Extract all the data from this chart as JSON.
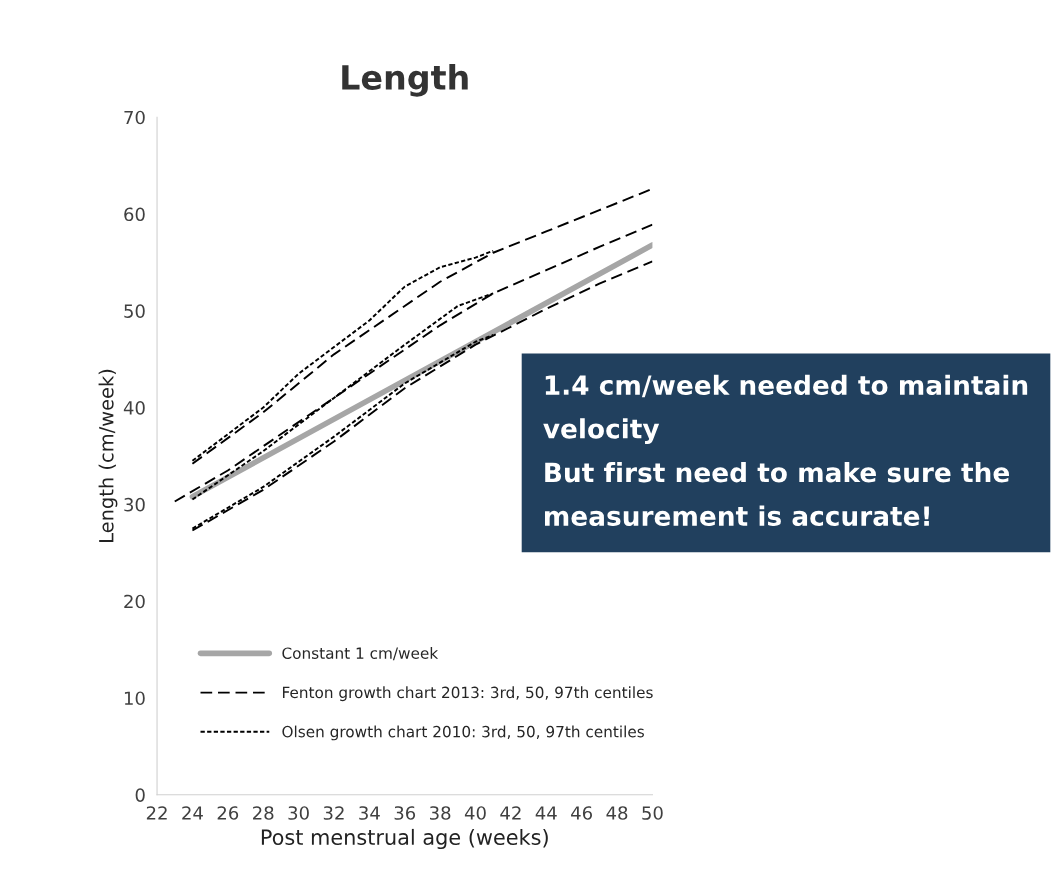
{
  "chart_data": {
    "type": "line",
    "title": "Length",
    "xlabel": "Post menstrual age (weeks)",
    "ylabel": "Length (cm/week)",
    "xlim": [
      22,
      50
    ],
    "xticks": [
      22,
      24,
      26,
      28,
      30,
      32,
      34,
      36,
      38,
      40,
      42,
      44,
      46,
      48,
      50
    ],
    "ylim": [
      0,
      70
    ],
    "yticks": [
      0,
      10,
      20,
      30,
      40,
      50,
      60,
      70
    ],
    "grid": false,
    "legend": "bottom left",
    "series": [
      {
        "name": "Constant 1 cm/week",
        "color": "#a6a6a6",
        "line_style": "solid",
        "x": [
          24,
          50
        ],
        "values": [
          30.8,
          56.8
        ]
      },
      {
        "name": "Fenton growth chart 2013: 3rd, 50, 97th centiles",
        "color": "#000000",
        "line_style": "dashed",
        "x": [
          24,
          28,
          32,
          36,
          38,
          41,
          44,
          47,
          50
        ],
        "values": [
          34.2,
          39.5,
          45.5,
          50.5,
          53,
          56,
          58.2,
          60.4,
          62.6
        ]
      },
      {
        "color": "#000000",
        "line_style": "dashed",
        "x": [
          23,
          26,
          30,
          34,
          38,
          41,
          44,
          47,
          50
        ],
        "values": [
          30.3,
          33.5,
          38.5,
          43.5,
          48.5,
          51.8,
          54.2,
          56.6,
          58.9
        ]
      },
      {
        "color": "#000000",
        "line_style": "dashed",
        "x": [
          24,
          28,
          32,
          36,
          40,
          44,
          47,
          50
        ],
        "values": [
          27.3,
          31.5,
          36.5,
          42,
          46.5,
          50.2,
          52.8,
          55.1
        ]
      },
      {
        "name": "Olsen growth chart 2010: 3rd, 50, 97th centiles",
        "color": "#000000",
        "line_style": "dotted",
        "x": [
          24,
          28,
          30,
          34,
          36,
          38,
          40,
          41
        ],
        "values": [
          34.5,
          40,
          43.5,
          49,
          52.5,
          54.5,
          55.5,
          56.2
        ]
      },
      {
        "color": "#000000",
        "line_style": "dotted",
        "x": [
          24,
          28,
          32,
          36,
          39,
          41
        ],
        "values": [
          30.5,
          35.5,
          41,
          46.5,
          50.5,
          51.8
        ]
      },
      {
        "color": "#000000",
        "line_style": "dotted",
        "x": [
          24,
          28,
          32,
          36,
          40,
          41
        ],
        "values": [
          27.5,
          31.8,
          37,
          42.5,
          46.8,
          47.5
        ]
      }
    ],
    "annotations": [
      "1.4 cm/week needed to maintain velocity\nBut first need to make sure the measurement is accurate!"
    ]
  }
}
